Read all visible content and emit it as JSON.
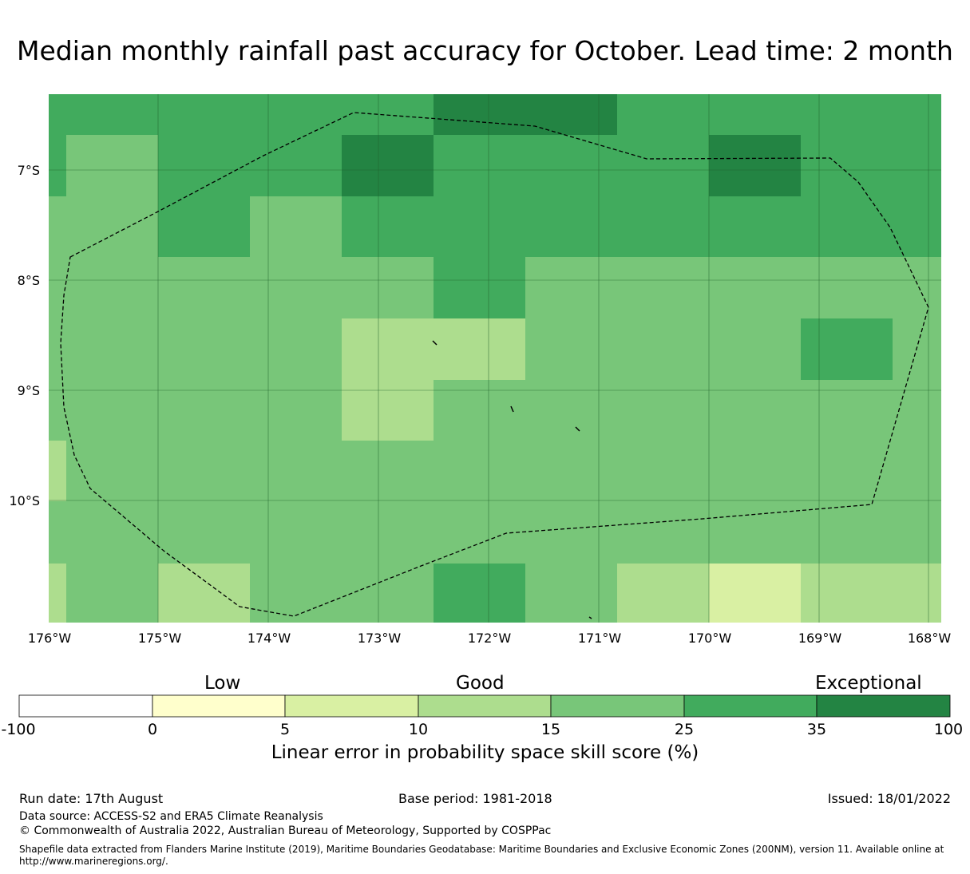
{
  "title": "Median monthly rainfall past accuracy for October. Lead time: 2 month",
  "map": {
    "lat_labels": [
      "7°S",
      "8°S",
      "9°S",
      "10°S"
    ],
    "lon_labels": [
      "176°W",
      "175°W",
      "174°W",
      "173°W",
      "172°W",
      "171°W",
      "170°W",
      "169°W",
      "168°W"
    ],
    "lon_range": [
      -176,
      -168
    ],
    "lat_range": [
      -11.1,
      -6.3
    ],
    "gridline_color": "#1f5f2b",
    "boundary": "Exclusive Economic Zone (dashed outline)"
  },
  "legend": {
    "categories": [
      "Low",
      "Good",
      "Exceptional"
    ],
    "ticks": [
      "-100",
      "0",
      "5",
      "10",
      "15",
      "25",
      "35",
      "100"
    ],
    "colors": [
      "#ffffff",
      "#ffffcc",
      "#d9f0a3",
      "#addd8e",
      "#78c679",
      "#41ab5d",
      "#238443"
    ],
    "label": "Linear error in probability space skill score (%)"
  },
  "footer": {
    "run_date": "Run date: 17th August",
    "base_period": "Base period: 1981-2018",
    "issued": "Issued: 18/01/2022",
    "data_source": "Data source: ACCESS-S2 and ERA5 Climate Reanalysis",
    "copyright": "© Commonwealth of Australia 2022, Australian Bureau of Meteorology, Supported by COSPPac",
    "shapefile": "Shapefile data extracted from Flanders Marine Institute (2019), Maritime Boundaries Geodatabase: Maritime Boundaries and Exclusive Economic Zones (200NM), version 11. Available online at http://www.marineregions.org/."
  }
}
